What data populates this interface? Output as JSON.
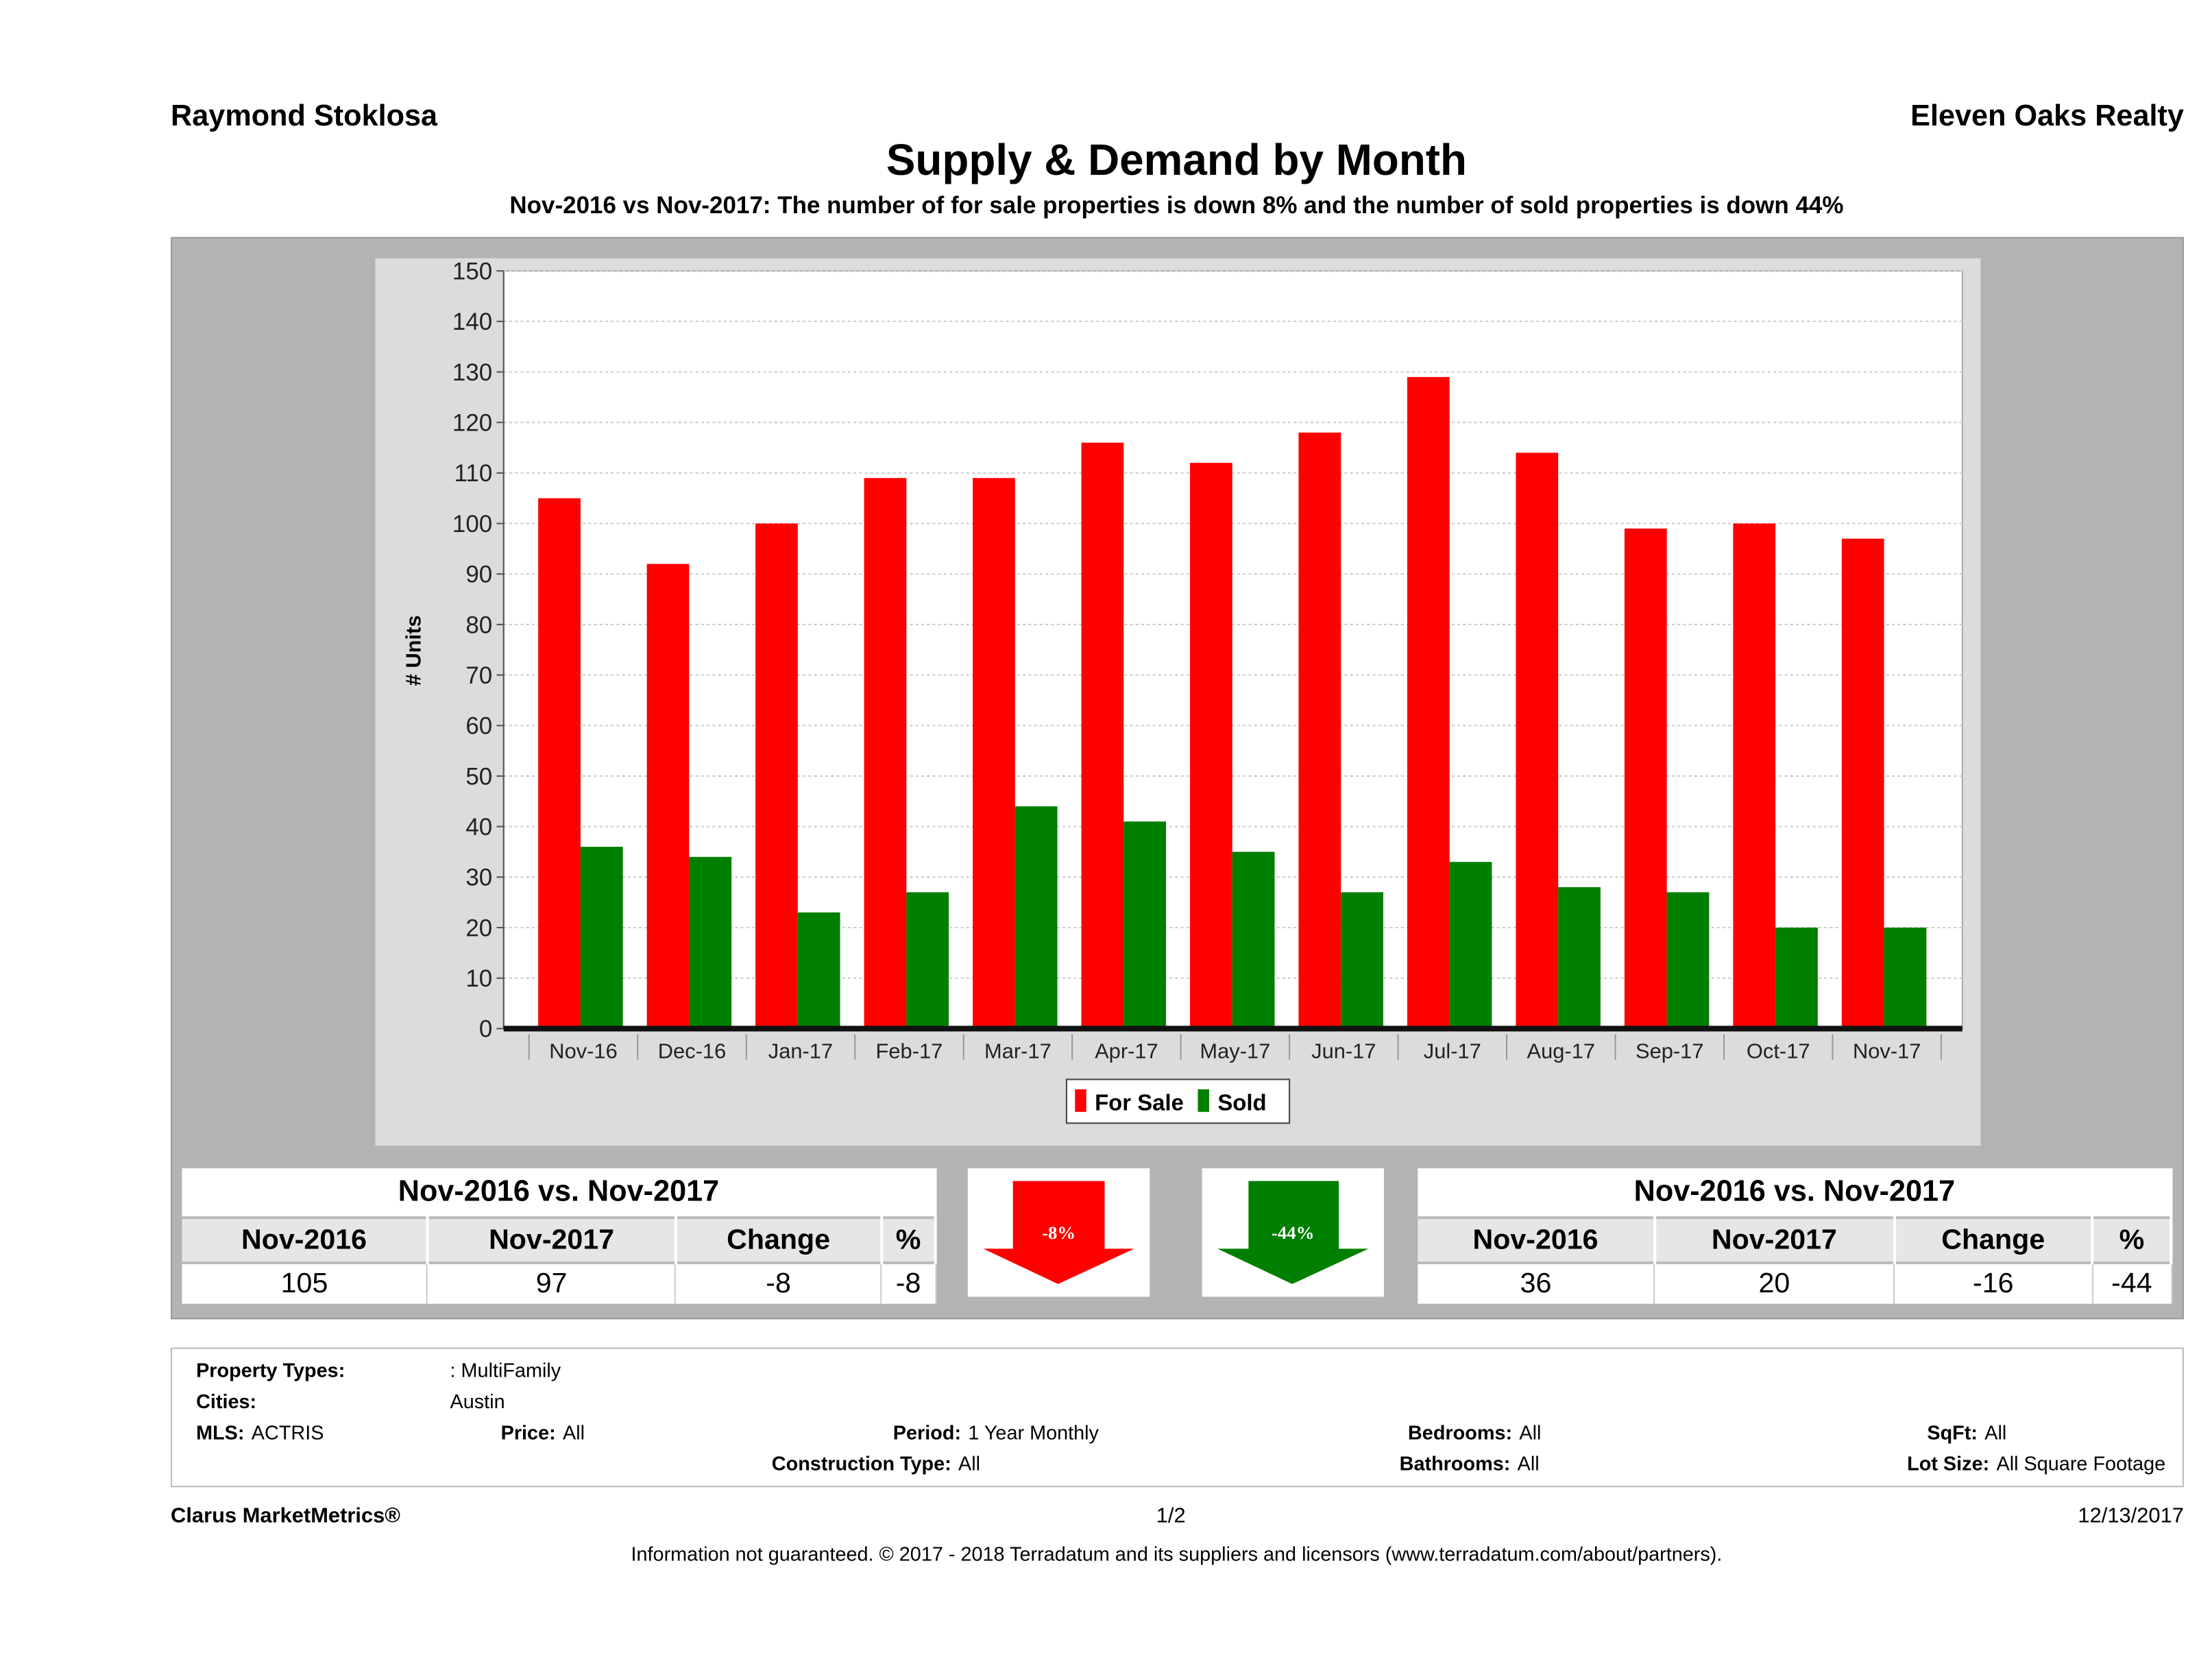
{
  "header": {
    "agent": "Raymond Stoklosa",
    "brokerage": "Eleven Oaks Realty"
  },
  "chart_data": {
    "type": "bar",
    "title": "Supply & Demand by Month",
    "subtitle": "Nov-2016 vs Nov-2017: The number of for sale properties is down 8% and the number of sold properties is down 44%",
    "ylabel": "# Units",
    "xlabel": "",
    "ylim": [
      0,
      150
    ],
    "yticks": [
      0,
      10,
      20,
      30,
      40,
      50,
      60,
      70,
      80,
      90,
      100,
      110,
      120,
      130,
      140,
      150
    ],
    "grid": true,
    "legend": "bottom-center",
    "categories": [
      "Nov-16",
      "Dec-16",
      "Jan-17",
      "Feb-17",
      "Mar-17",
      "Apr-17",
      "May-17",
      "Jun-17",
      "Jul-17",
      "Aug-17",
      "Sep-17",
      "Oct-17",
      "Nov-17"
    ],
    "series": [
      {
        "name": "For Sale",
        "color": "#ff0000",
        "values": [
          105,
          92,
          100,
          109,
          109,
          116,
          112,
          118,
          129,
          114,
          99,
          100,
          97
        ]
      },
      {
        "name": "Sold",
        "color": "#007f00",
        "values": [
          36,
          34,
          23,
          27,
          44,
          41,
          35,
          27,
          33,
          28,
          27,
          20,
          20
        ]
      }
    ]
  },
  "for_sale_summary": {
    "title": "Nov-2016 vs. Nov-2017",
    "headers": [
      "Nov-2016",
      "Nov-2017",
      "Change",
      "%"
    ],
    "values": [
      "105",
      "97",
      "-8",
      "-8"
    ],
    "arrow": "-8%",
    "color": "#ff0000"
  },
  "sold_summary": {
    "title": "Nov-2016 vs. Nov-2017",
    "headers": [
      "Nov-2016",
      "Nov-2017",
      "Change",
      "%"
    ],
    "values": [
      "36",
      "20",
      "-16",
      "-44"
    ],
    "arrow": "-44%",
    "color": "#007f00"
  },
  "filters": {
    "property_types_label": "Property Types:",
    "property_types": ": MultiFamily",
    "cities_label": "Cities:",
    "cities": "Austin",
    "mls_label": "MLS:",
    "mls": "ACTRIS",
    "price_label": "Price:",
    "price": "All",
    "period_label": "Period:",
    "period": "1 Year Monthly",
    "construction_label": "Construction Type:",
    "construction": "All",
    "bedrooms_label": "Bedrooms:",
    "bedrooms": "All",
    "bathrooms_label": "Bathrooms:",
    "bathrooms": "All",
    "sqft_label": "SqFt:",
    "sqft": "All",
    "lot_label": "Lot Size:",
    "lot": "All Square Footage"
  },
  "footer": {
    "brand": "Clarus MarketMetrics®",
    "page": "1/2",
    "date": "12/13/2017",
    "disclaimer": "Information not guaranteed. © 2017 - 2018 Terradatum and its suppliers and licensors (www.terradatum.com/about/partners)."
  }
}
